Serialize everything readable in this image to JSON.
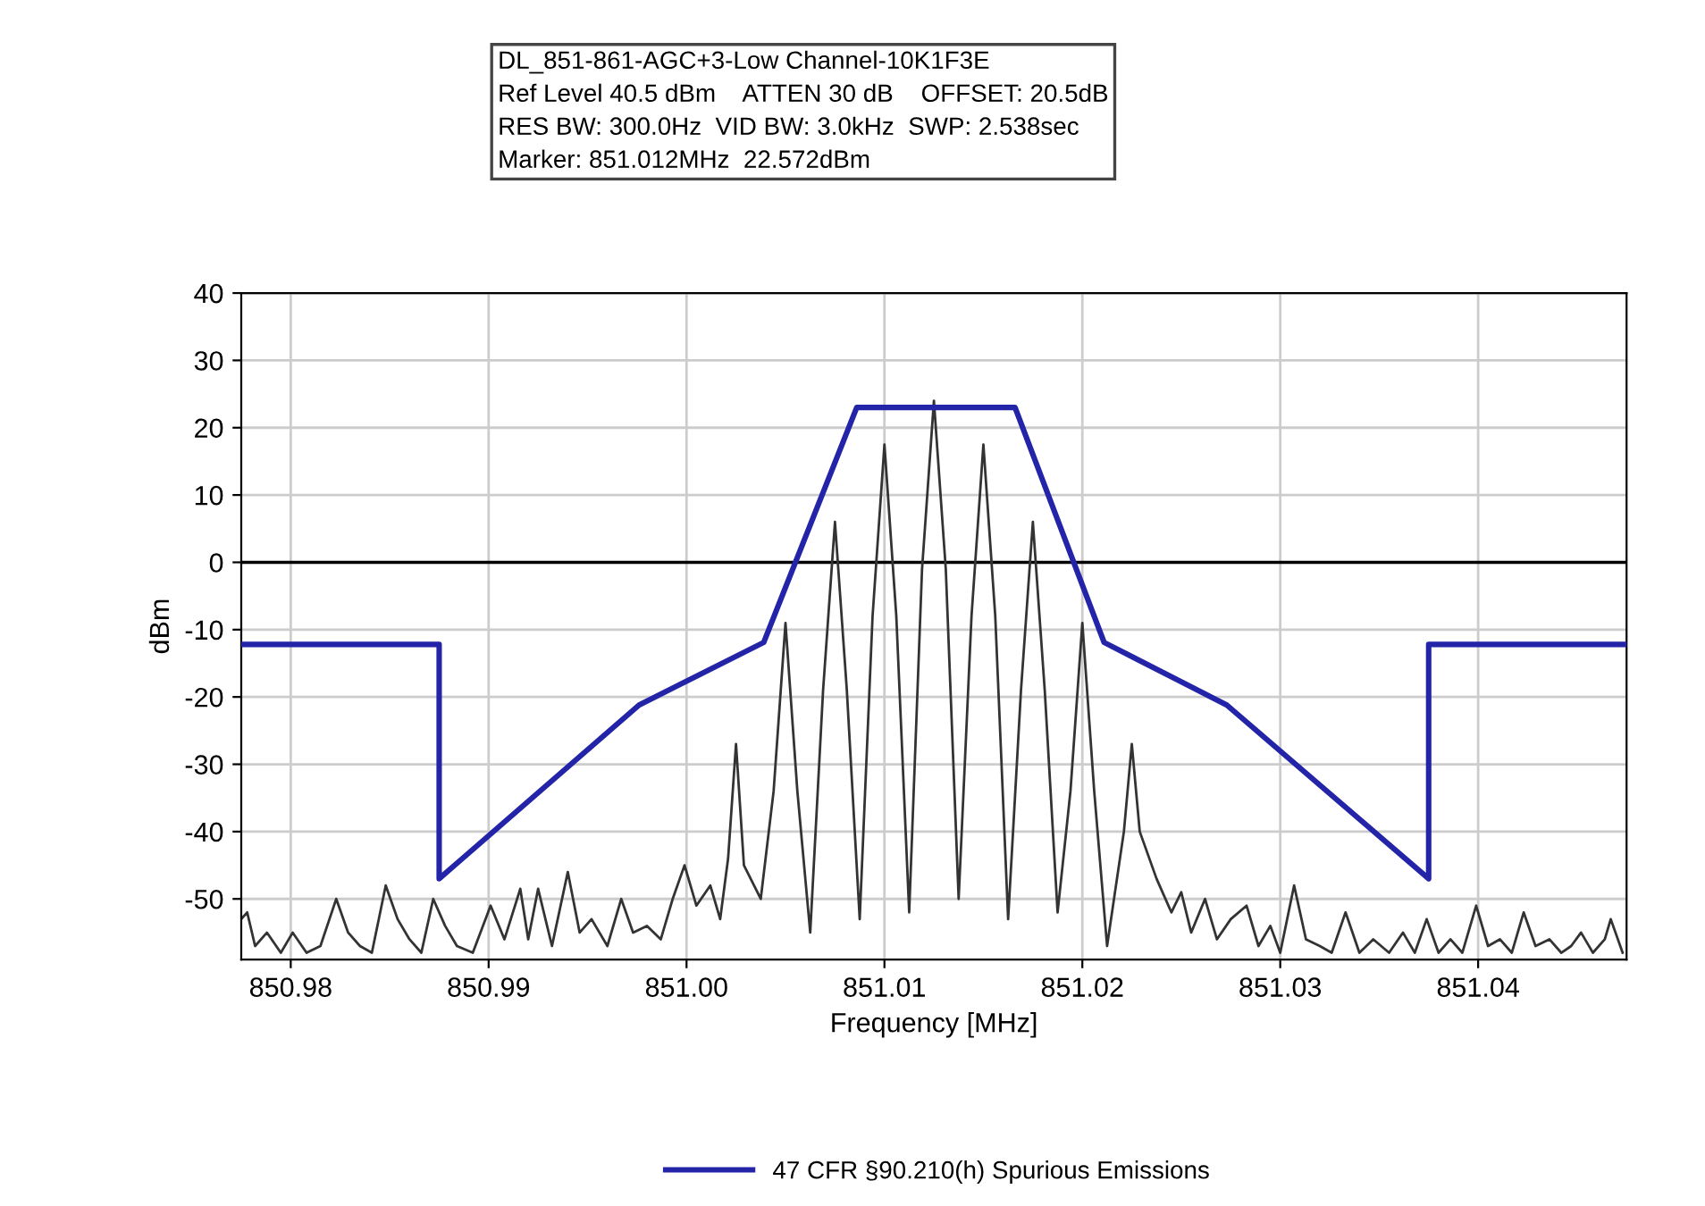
{
  "chart_data": {
    "type": "line",
    "title": "DL_851-861-AGC+3-Low Channel-10K1F3E",
    "annotations": [
      "Ref Level 40.5 dBm    ATTEN 30 dB    OFFSET: 20.5dB",
      "RES BW: 300.0Hz  VID BW: 3.0kHz  SWP: 2.538sec",
      "Marker: 851.012MHz  22.572dBm"
    ],
    "xlabel": "Frequency [MHz]",
    "ylabel": "dBm",
    "xlim": [
      850.9775,
      851.0475
    ],
    "ylim": [
      -59,
      40
    ],
    "xticks": [
      {
        "value": 850.98,
        "label": "850.98"
      },
      {
        "value": 850.99,
        "label": "850.99"
      },
      {
        "value": 851.0,
        "label": "851.00"
      },
      {
        "value": 851.01,
        "label": "851.01"
      },
      {
        "value": 851.02,
        "label": "851.02"
      },
      {
        "value": 851.03,
        "label": "851.03"
      },
      {
        "value": 851.04,
        "label": "851.04"
      }
    ],
    "yticks": [
      -50,
      -40,
      -30,
      -20,
      -10,
      0,
      10,
      20,
      30,
      40
    ],
    "grid": true,
    "legend": "bottom",
    "ref_lines": [
      {
        "axis": "y",
        "value": 0,
        "color": "#000000"
      }
    ],
    "series": [
      {
        "color": "#333333",
        "x": [
          850.9775,
          850.9778,
          850.9782,
          850.9788,
          850.9795,
          850.9801,
          850.9808,
          850.9815,
          850.9823,
          850.9829,
          850.9835,
          850.9841,
          850.9848,
          850.9854,
          850.986,
          850.9866,
          850.9872,
          850.9878,
          850.9884,
          850.9892,
          850.9901,
          850.9908,
          850.9916,
          850.992,
          850.9925,
          850.9932,
          850.994,
          850.9946,
          850.9952,
          850.996,
          850.9967,
          850.9973,
          850.998,
          850.9987,
          850.9993,
          850.9999,
          851.0005,
          851.0012,
          851.0017,
          851.0021,
          851.0025,
          851.0029,
          851.00375,
          851.0044,
          851.005,
          851.0056,
          851.00625,
          851.0069,
          851.0075,
          851.0081,
          851.00875,
          851.0094,
          851.01,
          851.0106,
          851.01125,
          851.0119,
          851.0125,
          851.0131,
          851.01375,
          851.0144,
          851.015,
          851.0156,
          851.01625,
          851.0169,
          851.0175,
          851.0181,
          851.01875,
          851.0194,
          851.02,
          851.0206,
          851.02125,
          851.0221,
          851.0225,
          851.0229,
          851.02375,
          851.0245,
          851.025,
          851.0255,
          851.0262,
          851.0268,
          851.0275,
          851.0283,
          851.0289,
          851.0295,
          851.03,
          851.0307,
          851.0313,
          851.032,
          851.0326,
          851.0333,
          851.034,
          851.0347,
          851.0355,
          851.0362,
          851.0368,
          851.0374,
          851.038,
          851.0386,
          851.0392,
          851.0399,
          851.0405,
          851.0411,
          851.0417,
          851.0423,
          851.0429,
          851.0436,
          851.0442,
          851.0447,
          851.0452,
          851.0458,
          851.0464,
          851.0467,
          851.0473
        ],
        "values": [
          -53,
          -52,
          -57,
          -55,
          -58,
          -55,
          -58,
          -57,
          -50,
          -55,
          -57,
          -58,
          -48,
          -53,
          -56,
          -58,
          -50,
          -54,
          -57,
          -58,
          -51,
          -56,
          -48.5,
          -56,
          -48.5,
          -57,
          -46,
          -55,
          -53,
          -57,
          -50,
          -55,
          -54,
          -56,
          -50,
          -45,
          -51,
          -48,
          -53,
          -44,
          -27,
          -45,
          -50,
          -34,
          -9,
          -34,
          -55,
          -19,
          6,
          -19,
          -53,
          -8,
          17.5,
          -8,
          -52,
          -1,
          24,
          -1,
          -50,
          -8,
          17.5,
          -8,
          -53,
          -19,
          6,
          -19,
          -52,
          -34,
          -9,
          -34,
          -57,
          -40,
          -27,
          -40,
          -47,
          -52,
          -49,
          -55,
          -50,
          -56,
          -53,
          -51,
          -57,
          -54,
          -58,
          -48,
          -56,
          -57,
          -58,
          -52,
          -58,
          -56,
          -58,
          -55,
          -58,
          -53,
          -58,
          -56,
          -58,
          -51,
          -57,
          -56,
          -58,
          -52,
          -57,
          -56,
          -58,
          -57,
          -55,
          -58,
          -56,
          -53,
          -58
        ]
      },
      {
        "name": "47 CFR §90.210(h) Spurious Emissions",
        "color": "#2424a8",
        "x": [
          850.9775,
          850.9875,
          850.9875,
          850.9976,
          851.0039,
          851.0086,
          851.0166,
          851.0211,
          851.0273,
          851.0375,
          851.0375,
          851.0475
        ],
        "values": [
          -12.2,
          -12.2,
          -47,
          -21.2,
          -11.9,
          23,
          23,
          -11.9,
          -21.2,
          -47,
          -12.2,
          -12.2
        ]
      }
    ]
  }
}
